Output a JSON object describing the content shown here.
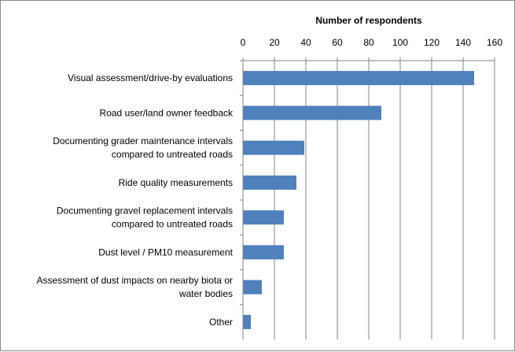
{
  "chart_data": {
    "type": "bar",
    "orientation": "horizontal",
    "title": "",
    "xlabel": "Number of respondents",
    "ylabel": "",
    "xlim": [
      0,
      160
    ],
    "x_ticks": [
      0,
      20,
      40,
      60,
      80,
      100,
      120,
      140,
      160
    ],
    "x_tick_labels": [
      "0",
      "20",
      "40",
      "60",
      "80",
      "100",
      "120",
      "140",
      "160"
    ],
    "x_axis_position": "top",
    "grid": true,
    "legend": "none",
    "bar_color": "#4f81bd",
    "gridline_color": "#868686",
    "categories": [
      [
        "Visual assessment/drive-by evaluations"
      ],
      [
        "Road user/land owner feedback"
      ],
      [
        "Documenting grader maintenance intervals",
        "compared to untreated roads"
      ],
      [
        "Ride quality measurements"
      ],
      [
        "Documenting gravel replacement intervals",
        "compared to untreated roads"
      ],
      [
        "Dust level / PM10 measurement"
      ],
      [
        "Assessment of dust impacts on nearby biota or",
        "water bodies"
      ],
      [
        "Other"
      ]
    ],
    "values": [
      147,
      88,
      39,
      34,
      26,
      26,
      12,
      5
    ]
  }
}
